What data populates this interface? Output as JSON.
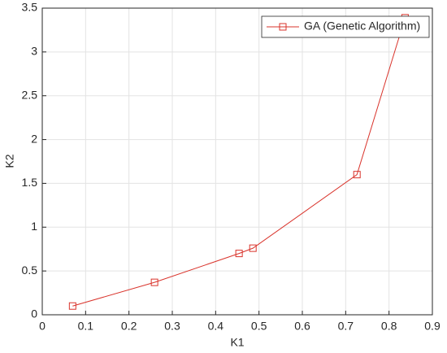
{
  "chart_data": {
    "type": "line",
    "x_label": "K1",
    "y_label": "K2",
    "x": [
      0.07,
      0.259,
      0.454,
      0.486,
      0.726,
      0.837
    ],
    "series": [
      {
        "name": "GA (Genetic Algorithm)",
        "color": "#d9332b",
        "values": [
          0.1,
          0.37,
          0.7,
          0.76,
          1.6,
          3.39
        ]
      }
    ],
    "xlim": [
      0,
      0.9
    ],
    "xticks": [
      0,
      0.1,
      0.2,
      0.3,
      0.4,
      0.5,
      0.6,
      0.7,
      0.8,
      0.9
    ],
    "ylim": [
      0,
      3.5
    ],
    "yticks": [
      0,
      0.5,
      1,
      1.5,
      2,
      2.5,
      3,
      3.5
    ],
    "grid": true,
    "legend": "northeast",
    "marker": "square"
  }
}
